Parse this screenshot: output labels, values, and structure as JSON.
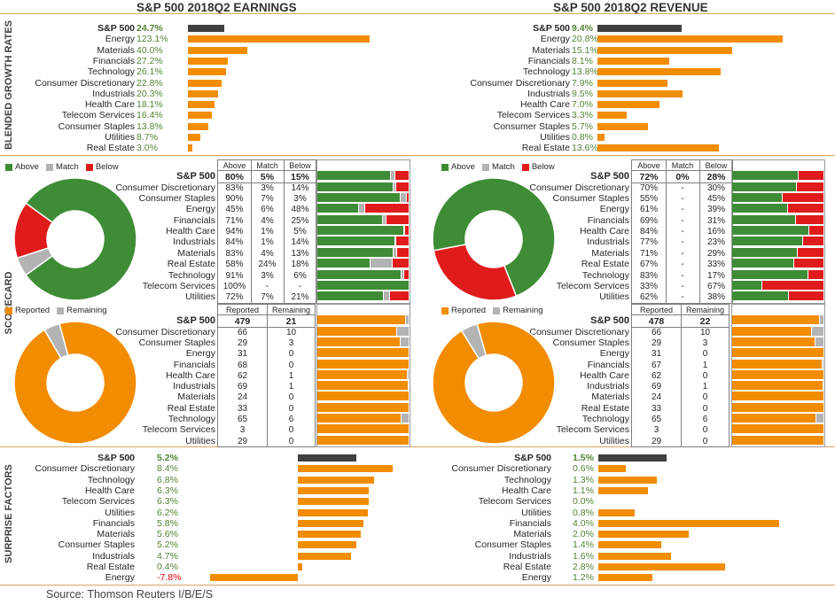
{
  "earnings_title": "S&P 500 2018Q2 EARNINGS",
  "revenue_title": "S&P 500 2018Q2 REVENUE",
  "side_labels": {
    "growth": "BLENDED GROWTH RATES",
    "scorecard": "SCORECARD",
    "surprise": "SURPRISE FACTORS"
  },
  "source": "Source: Thomson Reuters I/B/E/S",
  "colors": {
    "orange": "#f28c00",
    "dark": "#404040",
    "green": "#3e8c35",
    "gray": "#b3b3b3",
    "red": "#e01b1b"
  },
  "legend_abr": [
    "Above",
    "Match",
    "Below"
  ],
  "legend_rr": [
    "Reported",
    "Remaining"
  ],
  "col_abr": [
    "Above",
    "Match",
    "Below"
  ],
  "col_rr": [
    "Reported",
    "Remaining"
  ],
  "chart_data": [
    {
      "type": "bar",
      "title": "S&P 500 2018Q2 EARNINGS",
      "panel": "growth",
      "categories": [
        "S&P 500",
        "Energy",
        "Materials",
        "Financials",
        "Technology",
        "Consumer Discretionary",
        "Industrials",
        "Health Care",
        "Telecom Services",
        "Consumer Staples",
        "Utilities",
        "Real Estate"
      ],
      "labels": [
        "24.7%",
        "123.1%",
        "40.0%",
        "27.2%",
        "26.1%",
        "22.8%",
        "20.3%",
        "18.1%",
        "16.4%",
        "13.8%",
        "8.7%",
        "3.0%"
      ],
      "values": [
        24.7,
        123.1,
        40.0,
        27.2,
        26.1,
        22.8,
        20.3,
        18.1,
        16.4,
        13.8,
        8.7,
        3.0
      ]
    },
    {
      "type": "bar",
      "title": "S&P 500 2018Q2 REVENUE",
      "panel": "growth",
      "categories": [
        "S&P 500",
        "Energy",
        "Materials",
        "Financials",
        "Technology",
        "Consumer Discretionary",
        "Industrials",
        "Health Care",
        "Telecom Services",
        "Consumer Staples",
        "Utilities",
        "Real Estate"
      ],
      "labels": [
        "9.4%",
        "20.8%",
        "15.1%",
        "8.1%",
        "13.8%",
        "7.9%",
        "9.5%",
        "7.0%",
        "3.3%",
        "5.7%",
        "0.8%",
        "13.6%"
      ],
      "values": [
        9.4,
        20.8,
        15.1,
        8.1,
        13.8,
        7.9,
        9.5,
        7.0,
        3.3,
        5.7,
        0.8,
        13.6
      ]
    },
    {
      "type": "table",
      "panel": "abr-earnings",
      "categories": [
        "S&P 500",
        "Consumer Discretionary",
        "Consumer Staples",
        "Energy",
        "Financials",
        "Health Care",
        "Industrials",
        "Materials",
        "Real Estate",
        "Technology",
        "Telecom Services",
        "Utilities"
      ],
      "above": [
        "80%",
        "83%",
        "90%",
        "45%",
        "71%",
        "94%",
        "84%",
        "83%",
        "58%",
        "91%",
        "100%",
        "72%"
      ],
      "match": [
        "5%",
        "3%",
        "7%",
        "6%",
        "4%",
        "1%",
        "1%",
        "4%",
        "24%",
        "3%",
        "-",
        "7%"
      ],
      "below": [
        "15%",
        "14%",
        "3%",
        "48%",
        "25%",
        "5%",
        "14%",
        "13%",
        "18%",
        "6%",
        "-",
        "21%"
      ],
      "pie": [
        80,
        5,
        15
      ]
    },
    {
      "type": "table",
      "panel": "abr-revenue",
      "categories": [
        "S&P 500",
        "Consumer Discretionary",
        "Consumer Staples",
        "Energy",
        "Financials",
        "Health Care",
        "Industrials",
        "Materials",
        "Real Estate",
        "Technology",
        "Telecom Services",
        "Utilities"
      ],
      "above": [
        "72%",
        "70%",
        "55%",
        "61%",
        "69%",
        "84%",
        "77%",
        "71%",
        "67%",
        "83%",
        "33%",
        "62%"
      ],
      "match": [
        "0%",
        "-",
        "-",
        "-",
        "-",
        "-",
        "-",
        "-",
        "-",
        "-",
        "-",
        "-"
      ],
      "below": [
        "28%",
        "30%",
        "45%",
        "39%",
        "31%",
        "16%",
        "23%",
        "29%",
        "33%",
        "17%",
        "67%",
        "38%"
      ],
      "pie": [
        72,
        0,
        28
      ]
    },
    {
      "type": "table",
      "panel": "rr-earnings",
      "categories": [
        "S&P 500",
        "Consumer Discretionary",
        "Consumer Staples",
        "Energy",
        "Financials",
        "Health Care",
        "Industrials",
        "Materials",
        "Real Estate",
        "Technology",
        "Telecom Services",
        "Utilities"
      ],
      "reported": [
        "479",
        "66",
        "29",
        "31",
        "68",
        "62",
        "69",
        "24",
        "33",
        "65",
        "3",
        "29"
      ],
      "remaining": [
        "21",
        "10",
        "3",
        "0",
        "0",
        "1",
        "1",
        "0",
        "0",
        "6",
        "0",
        "0"
      ],
      "pie": [
        479,
        21
      ]
    },
    {
      "type": "table",
      "panel": "rr-revenue",
      "categories": [
        "S&P 500",
        "Consumer Discretionary",
        "Consumer Staples",
        "Energy",
        "Financials",
        "Health Care",
        "Industrials",
        "Materials",
        "Real Estate",
        "Technology",
        "Telecom Services",
        "Utilities"
      ],
      "reported": [
        "478",
        "66",
        "29",
        "31",
        "67",
        "62",
        "69",
        "24",
        "33",
        "65",
        "3",
        "29"
      ],
      "remaining": [
        "22",
        "10",
        "3",
        "0",
        "1",
        "0",
        "1",
        "0",
        "0",
        "6",
        "0",
        "0"
      ],
      "pie": [
        478,
        22
      ]
    },
    {
      "type": "bar",
      "panel": "surprise-earnings",
      "categories": [
        "S&P 500",
        "Consumer Discretionary",
        "Technology",
        "Health Care",
        "Telecom Services",
        "Utilities",
        "Financials",
        "Materials",
        "Consumer Staples",
        "Industrials",
        "Real Estate",
        "Energy"
      ],
      "labels": [
        "5.2%",
        "8.4%",
        "6.8%",
        "6.3%",
        "6.3%",
        "6.2%",
        "5.8%",
        "5.6%",
        "5.2%",
        "4.7%",
        "0.4%",
        "-7.8%"
      ],
      "values": [
        5.2,
        8.4,
        6.8,
        6.3,
        6.3,
        6.2,
        5.8,
        5.6,
        5.2,
        4.7,
        0.4,
        -7.8
      ]
    },
    {
      "type": "bar",
      "panel": "surprise-revenue",
      "categories": [
        "S&P 500",
        "Consumer Discretionary",
        "Technology",
        "Health Care",
        "Telecom Services",
        "Utilities",
        "Financials",
        "Materials",
        "Consumer Staples",
        "Industrials",
        "Real Estate",
        "Energy"
      ],
      "labels": [
        "1.5%",
        "0.6%",
        "1.3%",
        "1.1%",
        "0.0%",
        "0.8%",
        "4.0%",
        "2.0%",
        "1.4%",
        "1.6%",
        "2.8%",
        "1.2%"
      ],
      "values": [
        1.5,
        0.6,
        1.3,
        1.1,
        0.0,
        0.8,
        4.0,
        2.0,
        1.4,
        1.6,
        2.8,
        1.2
      ]
    }
  ]
}
